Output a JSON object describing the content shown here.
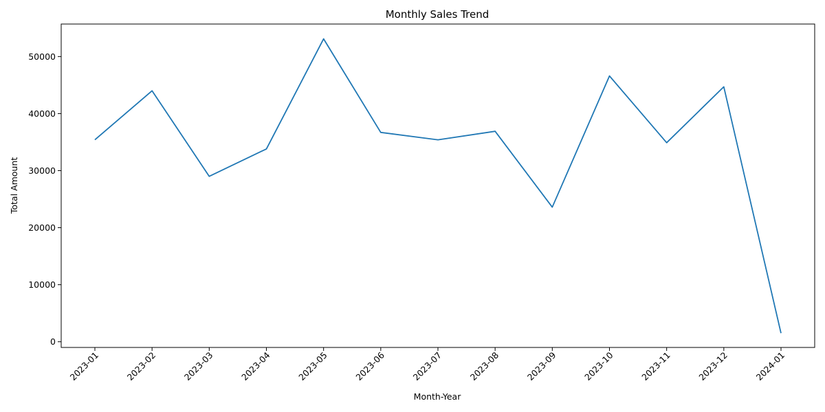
{
  "chart_data": {
    "type": "line",
    "title": "Monthly Sales Trend",
    "xlabel": "Month-Year",
    "ylabel": "Total Amount",
    "categories": [
      "2023-01",
      "2023-02",
      "2023-03",
      "2023-04",
      "2023-05",
      "2023-06",
      "2023-07",
      "2023-08",
      "2023-09",
      "2023-10",
      "2023-11",
      "2023-12",
      "2024-01"
    ],
    "series": [
      {
        "values": [
          35400,
          44000,
          29000,
          33800,
          53100,
          36700,
          35400,
          36900,
          23600,
          46600,
          34900,
          44700,
          1500
        ]
      }
    ],
    "ylim": [
      -1000,
      55700
    ],
    "yticks": [
      0,
      10000,
      20000,
      30000,
      40000,
      50000
    ],
    "ytick_labels": [
      "0",
      "10000",
      "20000",
      "30000",
      "40000",
      "50000"
    ],
    "grid": false,
    "legend": "none",
    "colors": {
      "series": "#1f77b4"
    }
  }
}
